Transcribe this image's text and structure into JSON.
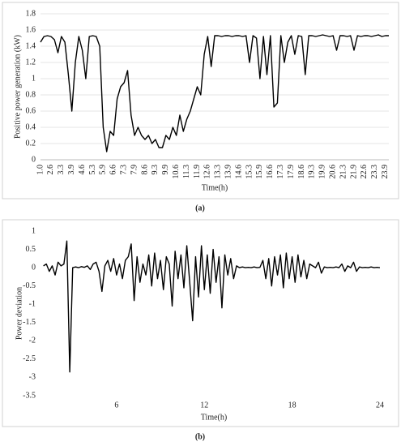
{
  "chart_data": [
    {
      "type": "line",
      "caption": "(a)",
      "ylabel": "Positive power generation (kW)",
      "xlabel": "Time(h)",
      "color": "#000000",
      "grid": true,
      "ylim": [
        0,
        1.8
      ],
      "yticks": [
        0,
        0.2,
        0.4,
        0.6,
        0.8,
        1,
        1.2,
        1.4,
        1.6,
        1.8
      ],
      "categories": [
        "1.0",
        null,
        null,
        "2.6",
        null,
        null,
        "3.3",
        null,
        null,
        "3.9",
        null,
        null,
        "4.6",
        null,
        null,
        "5.3",
        null,
        null,
        "5.9",
        null,
        null,
        "6.6",
        null,
        null,
        "7.3",
        null,
        null,
        "7.9",
        null,
        null,
        "8.6",
        null,
        null,
        "9.3",
        null,
        null,
        "9.9",
        null,
        null,
        "10.6",
        null,
        null,
        "11.3",
        null,
        null,
        "11.9",
        null,
        null,
        "12.6",
        null,
        null,
        "13.3",
        null,
        null,
        "13.9",
        null,
        null,
        "14.6",
        null,
        null,
        "15.3",
        null,
        null,
        "15.9",
        null,
        null,
        "16.6",
        null,
        null,
        "17.3",
        null,
        null,
        "17.9",
        null,
        null,
        "18.6",
        null,
        null,
        "19.3",
        null,
        null,
        "19.9",
        null,
        null,
        "20.6",
        null,
        null,
        "21.3",
        null,
        null,
        "21.9",
        null,
        null,
        "22.6",
        null,
        null,
        "23.3",
        null,
        null,
        "23.9",
        null
      ],
      "values": [
        1.45,
        1.52,
        1.53,
        1.52,
        1.48,
        1.32,
        1.52,
        1.45,
        1.05,
        0.6,
        1.2,
        1.52,
        1.35,
        1.0,
        1.52,
        1.53,
        1.52,
        1.4,
        0.4,
        0.1,
        0.35,
        0.3,
        0.75,
        0.9,
        0.95,
        1.1,
        0.55,
        0.3,
        0.4,
        0.3,
        0.25,
        0.3,
        0.2,
        0.25,
        0.15,
        0.15,
        0.3,
        0.25,
        0.4,
        0.3,
        0.55,
        0.35,
        0.5,
        0.6,
        0.75,
        0.9,
        0.8,
        1.3,
        1.52,
        1.15,
        1.53,
        1.53,
        1.52,
        1.53,
        1.53,
        1.52,
        1.53,
        1.53,
        1.52,
        1.53,
        1.2,
        1.53,
        1.5,
        1.0,
        1.52,
        1.05,
        1.53,
        0.65,
        0.7,
        1.53,
        1.2,
        1.45,
        1.53,
        1.3,
        1.53,
        1.52,
        1.05,
        1.53,
        1.53,
        1.52,
        1.53,
        1.54,
        1.53,
        1.52,
        1.53,
        1.35,
        1.53,
        1.53,
        1.52,
        1.53,
        1.35,
        1.53,
        1.52,
        1.53,
        1.53,
        1.52,
        1.53,
        1.54,
        1.52,
        1.53,
        1.53
      ]
    },
    {
      "type": "line",
      "caption": "(b)",
      "ylabel": "Power deviation",
      "xlabel": "Time(h)",
      "color": "#000000",
      "grid": false,
      "ylim": [
        -3.5,
        1
      ],
      "yticks": [
        1,
        0.5,
        0,
        -0.5,
        -1,
        -1.5,
        -2,
        -2.5,
        -3,
        -3.5
      ],
      "xlim": [
        0.8,
        24.5
      ],
      "xticks": [
        6,
        12,
        18,
        24
      ],
      "x": [
        1.0,
        1.2,
        1.4,
        1.6,
        1.8,
        2.0,
        2.2,
        2.4,
        2.6,
        2.8,
        3.0,
        3.2,
        3.4,
        3.6,
        3.8,
        4.0,
        4.2,
        4.4,
        4.6,
        4.8,
        5.0,
        5.2,
        5.4,
        5.6,
        5.8,
        6.0,
        6.2,
        6.4,
        6.6,
        6.8,
        7.0,
        7.2,
        7.4,
        7.6,
        7.8,
        8.0,
        8.2,
        8.4,
        8.6,
        8.8,
        9.0,
        9.2,
        9.4,
        9.6,
        9.8,
        10.0,
        10.2,
        10.4,
        10.6,
        10.8,
        11.0,
        11.2,
        11.4,
        11.6,
        11.8,
        12.0,
        12.2,
        12.4,
        12.6,
        12.8,
        13.0,
        13.2,
        13.4,
        13.6,
        13.8,
        14.0,
        14.2,
        14.4,
        14.6,
        14.8,
        15.0,
        15.2,
        15.4,
        15.6,
        15.8,
        16.0,
        16.2,
        16.4,
        16.6,
        16.8,
        17.0,
        17.2,
        17.4,
        17.6,
        17.8,
        18.0,
        18.2,
        18.4,
        18.6,
        18.8,
        19.0,
        19.2,
        19.4,
        19.6,
        19.8,
        20.0,
        20.2,
        20.4,
        20.6,
        20.8,
        21.0,
        21.2,
        21.4,
        21.6,
        21.8,
        22.0,
        22.2,
        22.4,
        22.6,
        22.8,
        23.0,
        23.2,
        23.4,
        23.6,
        23.8,
        24.0
      ],
      "values": [
        0.05,
        0.1,
        -0.1,
        0.05,
        -0.2,
        0.15,
        0.05,
        0.1,
        0.73,
        -2.85,
        0.0,
        0.02,
        0,
        0.03,
        0.01,
        0.05,
        -0.05,
        0.1,
        0.15,
        -0.1,
        -0.65,
        0.05,
        0.2,
        -0.1,
        0.25,
        -0.2,
        0.1,
        -0.3,
        0.2,
        0.3,
        0.65,
        -0.9,
        0.3,
        -0.4,
        0.1,
        -0.2,
        0.35,
        -0.5,
        0.4,
        -0.3,
        0.2,
        -0.6,
        0.3,
        0.1,
        -1.05,
        0.45,
        -0.3,
        0.35,
        -0.55,
        0.6,
        -0.4,
        -1.45,
        0.3,
        -0.8,
        0.6,
        -0.6,
        0.35,
        -0.7,
        0.5,
        -0.4,
        0.3,
        -1.1,
        0.35,
        -0.2,
        0.25,
        -0.3,
        0.05,
        0,
        0.02,
        0,
        0.01,
        0,
        0.02,
        0,
        0.01,
        0.2,
        -0.3,
        0.25,
        -0.5,
        0.3,
        -0.2,
        0.35,
        -0.55,
        0.4,
        -0.3,
        0.3,
        -0.4,
        0.35,
        -0.25,
        0.2,
        -0.3,
        0.1,
        0.05,
        0,
        0.15,
        -0.15,
        0.02,
        0,
        0.01,
        0,
        0.02,
        0,
        0.1,
        -0.1,
        0.05,
        0,
        0.15,
        -0.1,
        0.02,
        0,
        0.01,
        0,
        0.02,
        0,
        0.01,
        0
      ]
    }
  ]
}
